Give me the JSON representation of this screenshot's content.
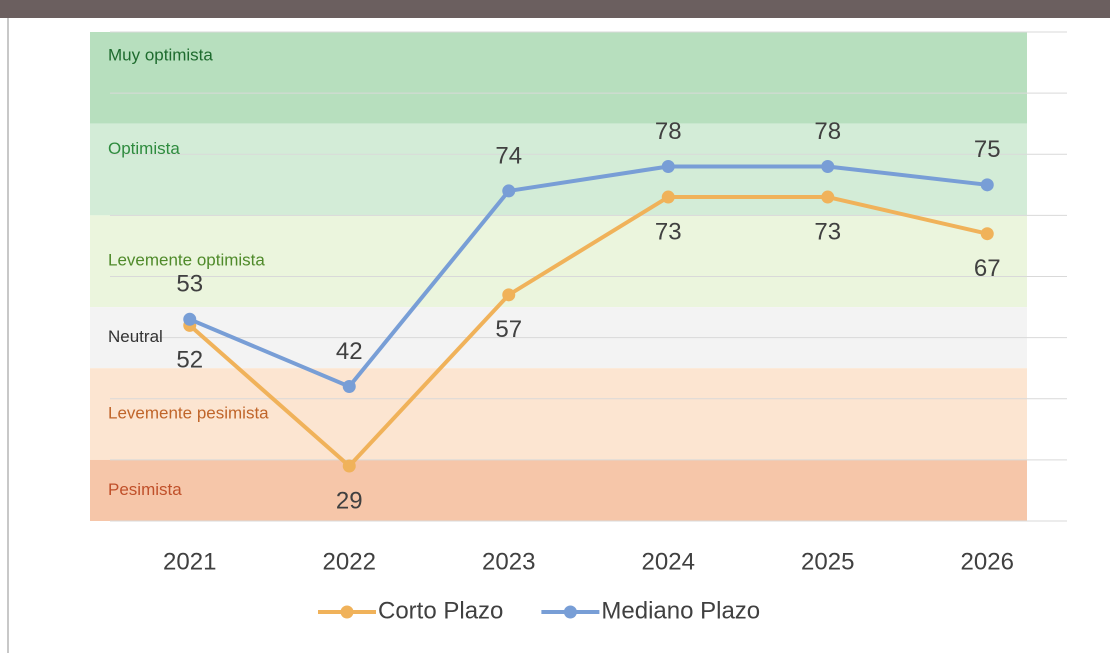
{
  "chart_data": {
    "type": "line",
    "categories": [
      "2021",
      "2022",
      "2023",
      "2024",
      "2025",
      "2026"
    ],
    "series": [
      {
        "name": "Corto Plazo",
        "color": "#f0b25a",
        "values": [
          52,
          29,
          57,
          73,
          73,
          67
        ]
      },
      {
        "name": "Mediano Plazo",
        "color": "#789ed6",
        "values": [
          53,
          42,
          74,
          78,
          78,
          75
        ]
      }
    ],
    "bands": [
      {
        "label": "Muy optimista",
        "from": 85,
        "to": 100,
        "color": "#b7dfbe",
        "text_color": "#1e6b2e"
      },
      {
        "label": "Optimista",
        "from": 70,
        "to": 85,
        "color": "#d3ecd7",
        "text_color": "#2e8b3e"
      },
      {
        "label": "Levemente optimista",
        "from": 55,
        "to": 70,
        "color": "#ebf5dd",
        "text_color": "#4f8a2a"
      },
      {
        "label": "Neutral",
        "from": 45,
        "to": 55,
        "color": "#f3f3f3",
        "text_color": "#333333"
      },
      {
        "label": "Levemente pesimista",
        "from": 30,
        "to": 45,
        "color": "#fce5d1",
        "text_color": "#c0652a"
      },
      {
        "label": "Pesimista",
        "from": 20,
        "to": 30,
        "color": "#f6c6a9",
        "text_color": "#c0502a"
      }
    ],
    "ylim": [
      20,
      100
    ],
    "yticks": [
      20,
      30,
      40,
      50,
      60,
      70,
      80,
      90,
      100
    ],
    "grid": true,
    "legend": "bottom"
  }
}
